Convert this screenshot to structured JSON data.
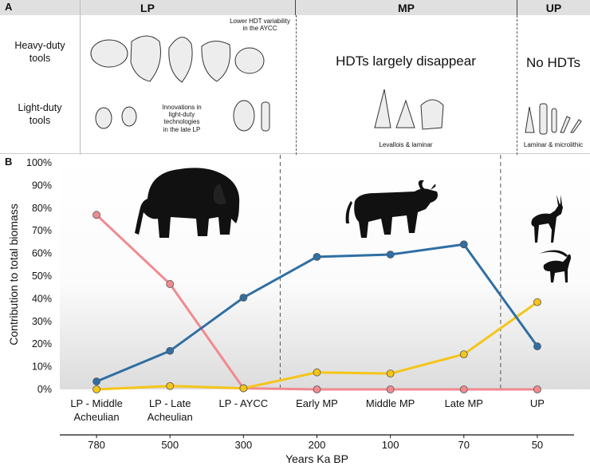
{
  "panelA": {
    "label": "A",
    "periods": [
      "LP",
      "MP",
      "UP"
    ],
    "row_labels": {
      "heavy": "Heavy-duty\ntools",
      "light": "Light-duty\ntools"
    },
    "notes": {
      "lower_hdt": "Lower HDT variability\nin the AYCC",
      "innovations": "Innovations in\nlight-duty\ntechnologies\nin the late LP",
      "mp_heavy": "HDTs largely disappear",
      "up_heavy": "No HDTs",
      "mp_light": "Levallois & laminar",
      "up_light": "Laminar & microlithic"
    }
  },
  "panelB": {
    "label": "B",
    "animals": [
      "elephant-silhouette",
      "aurochs-silhouette",
      "gazelle-silhouette",
      "ibex-silhouette"
    ]
  },
  "chart_data": {
    "type": "line",
    "categories": [
      "LP - Middle\nAcheulian",
      "LP - Late\nAcheulian",
      "LP - AYCC",
      "Early MP",
      "Middle MP",
      "Late MP",
      "UP"
    ],
    "years_axis": {
      "label": "Years Ka BP",
      "ticks": [
        "780",
        "500",
        "300",
        "200",
        "100",
        "70",
        "50"
      ]
    },
    "ylabel": "Contribution to total biomass",
    "ylim": [
      0,
      100
    ],
    "yticks": [
      "0%",
      "10%",
      "20%",
      "30%",
      "40%",
      "50%",
      "60%",
      "70%",
      "80%",
      "90%",
      "100%"
    ],
    "series": [
      {
        "color": "#2f6fa3",
        "values": [
          3.5,
          17,
          40.5,
          58.5,
          59.5,
          64,
          19
        ]
      },
      {
        "color": "#f08a8f",
        "values": [
          77,
          46.5,
          0.5,
          0,
          0,
          0,
          0
        ]
      },
      {
        "color": "#f5c518",
        "values": [
          0,
          1.5,
          0.5,
          7.5,
          7,
          15.5,
          38.5
        ]
      }
    ],
    "grid": false,
    "legend": "none",
    "background_gradient": "bottom grey fade"
  }
}
